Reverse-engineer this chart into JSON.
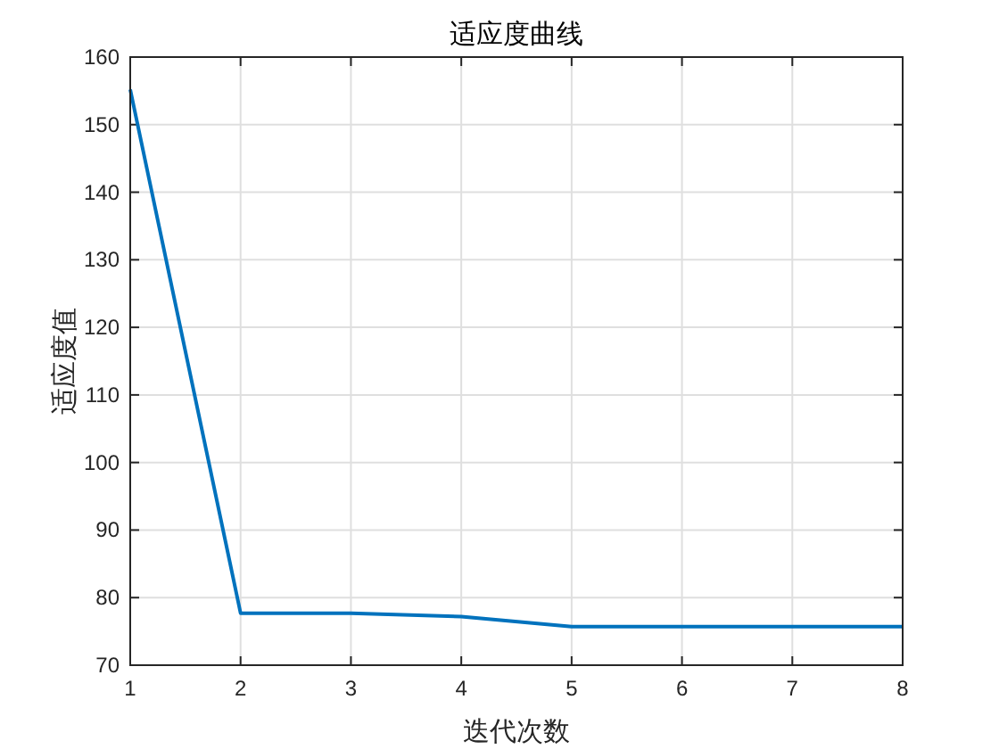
{
  "chart_data": {
    "type": "line",
    "title": "适应度曲线",
    "xlabel": "迭代次数",
    "ylabel": "适应度值",
    "x": [
      1,
      2,
      3,
      4,
      5,
      6,
      7,
      8
    ],
    "series": [
      {
        "color": "#0072bd",
        "values": [
          155.2,
          77.7,
          77.7,
          77.2,
          75.7,
          75.7,
          75.7,
          75.7
        ]
      }
    ],
    "xlim": [
      1,
      8
    ],
    "xticks": [
      1,
      2,
      3,
      4,
      5,
      6,
      7,
      8
    ],
    "ylim": [
      70,
      160
    ],
    "yticks": [
      70,
      80,
      90,
      100,
      110,
      120,
      130,
      140,
      150,
      160
    ],
    "grid": true,
    "marker": "none",
    "line_style": "solid"
  }
}
